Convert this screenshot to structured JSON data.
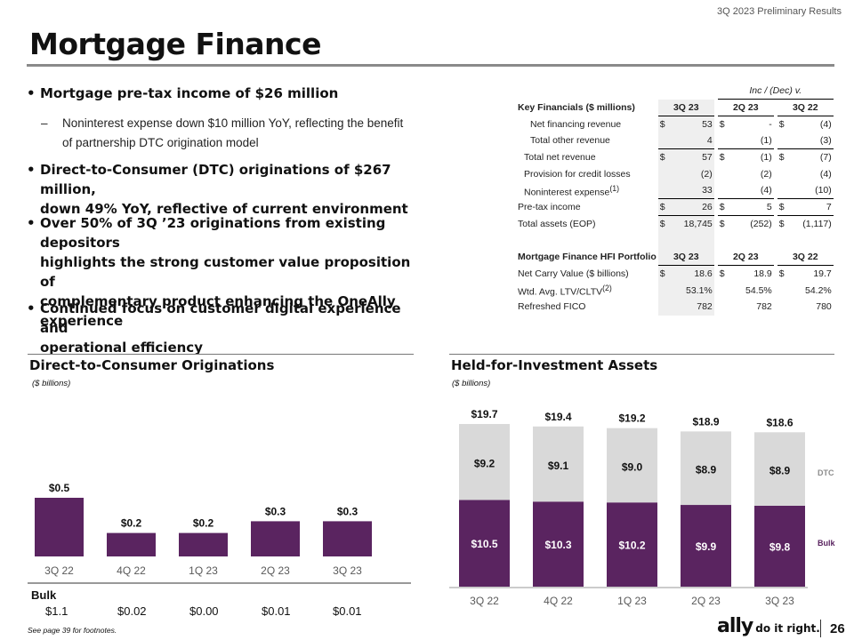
{
  "header": {
    "doc_label": "3Q 2023 Preliminary Results",
    "title": "Mortgage Finance"
  },
  "bullets": [
    "Mortgage pre-tax income of $26 million",
    "Noninterest expense down $10 million YoY, reflecting the benefit",
    "of partnership DTC origination model",
    "Direct-to-Consumer (DTC) originations of $267 million,",
    "down 49% YoY, reflective of current environment",
    "Over 50% of 3Q ’23 originations from existing depositors",
    "highlights the strong customer value proposition of",
    "complementary product enhancing the OneAlly",
    "experience",
    "Continued focus on customer digital experience and",
    "operational efficiency"
  ],
  "dash": "–",
  "financials": {
    "inc_dec_label": "Inc / (Dec) v.",
    "header1": [
      "Key Financials ($ millions)",
      "3Q 23",
      "2Q 23",
      "3Q 22"
    ],
    "rows1": [
      [
        "Net financing revenue",
        "$",
        "53",
        "$",
        "-",
        "$",
        "(4)"
      ],
      [
        "Total other revenue",
        "",
        "4",
        "",
        "(1)",
        "",
        "(3)"
      ],
      [
        "Total net revenue",
        "$",
        "57",
        "$",
        "(1)",
        "$",
        "(7)"
      ],
      [
        "Provision for credit losses",
        "",
        "(2)",
        "",
        "(2)",
        "",
        "(4)"
      ],
      [
        "Noninterest expense",
        "",
        "33",
        "",
        "(4)",
        "",
        "(10)"
      ],
      [
        "Pre-tax income",
        "$",
        "26",
        "$",
        "5",
        "$",
        "7"
      ],
      [
        "Total assets (EOP)",
        "$",
        "18,745",
        "$",
        "(252)",
        "$",
        "(1,117)"
      ]
    ],
    "nie_sup": "(1)",
    "header2": [
      "Mortgage Finance HFI Portfolio",
      "3Q 23",
      "2Q 23",
      "3Q 22"
    ],
    "rows2": [
      [
        "Net Carry Value ($ billions)",
        "$",
        "18.6",
        "$",
        "18.9",
        "$",
        "19.7"
      ],
      [
        "Wtd. Avg. LTV/CLTV",
        "",
        "53.1%",
        "",
        "54.5%",
        "",
        "54.2%"
      ],
      [
        "Refreshed FICO",
        "",
        "782",
        "",
        "782",
        "",
        "780"
      ]
    ],
    "ltv_sup": "(2)"
  },
  "left_section": {
    "title": "Direct-to-Consumer Originations",
    "subtitle": "($ billions)"
  },
  "right_section": {
    "title": "Held-for-Investment Assets",
    "subtitle": "($ billions)"
  },
  "bulk_row": {
    "label": "Bulk",
    "values": [
      "$1.1",
      "$0.02",
      "$0.00",
      "$0.01",
      "$0.01"
    ]
  },
  "footer": {
    "note": "See page 39 for footnotes.",
    "logo": "ally",
    "tagline": "do it right.",
    "page_number": "26"
  },
  "colors": {
    "purple": "#5a2460",
    "gray_bar": "#d9d9d9",
    "axis_label": "#595959"
  },
  "chart_data": [
    {
      "type": "bar",
      "title": "Direct-to-Consumer Originations",
      "ylabel": "$ billions",
      "categories": [
        "3Q 22",
        "4Q 22",
        "1Q 23",
        "2Q 23",
        "3Q 23"
      ],
      "values": [
        0.5,
        0.2,
        0.2,
        0.3,
        0.3
      ],
      "labels": [
        "$0.5",
        "$0.2",
        "$0.2",
        "$0.3",
        "$0.3"
      ],
      "ylim": [
        0,
        0.5
      ]
    },
    {
      "type": "bar",
      "stacked": true,
      "title": "Held-for-Investment Assets",
      "ylabel": "$ billions",
      "categories": [
        "3Q 22",
        "4Q 22",
        "1Q 23",
        "2Q 23",
        "3Q 23"
      ],
      "series": [
        {
          "name": "Bulk",
          "values": [
            10.5,
            10.3,
            10.2,
            9.9,
            9.8
          ],
          "labels": [
            "$10.5",
            "$10.3",
            "$10.2",
            "$9.9",
            "$9.8"
          ]
        },
        {
          "name": "DTC",
          "values": [
            9.2,
            9.1,
            9.0,
            8.9,
            8.9
          ],
          "labels": [
            "$9.2",
            "$9.1",
            "$9.0",
            "$8.9",
            "$8.9"
          ]
        }
      ],
      "totals": [
        "$19.7",
        "$19.4",
        "$19.2",
        "$18.9",
        "$18.6"
      ],
      "total_values": [
        19.7,
        19.4,
        19.2,
        18.9,
        18.6
      ],
      "ylim": [
        0,
        19.7
      ]
    }
  ]
}
